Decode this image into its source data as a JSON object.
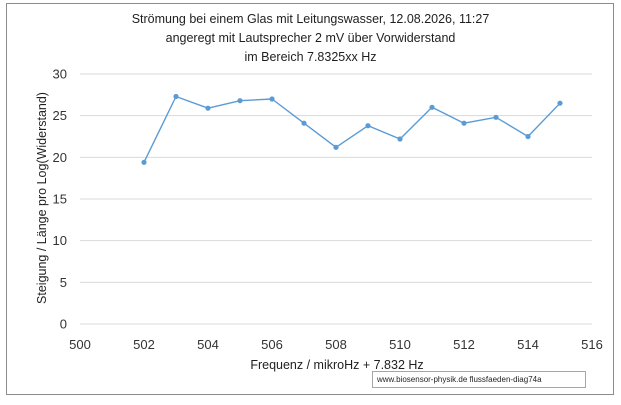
{
  "chart_data": {
    "type": "line",
    "title_lines": [
      "Strömung bei einem Glas mit  Leitungswasser, 12.08.2026, 11:27",
      "angeregt mit Lautsprecher 2 mV über Vorwiderstand",
      "im Bereich 7.8325xx Hz"
    ],
    "xlabel": "Frequenz / mikroHz  + 7.832 Hz",
    "ylabel": "Steigung /  Länge pro Log(Widerstand)",
    "xlim": [
      500,
      516
    ],
    "ylim": [
      0,
      30
    ],
    "x_ticks": [
      500,
      502,
      504,
      506,
      508,
      510,
      512,
      514,
      516
    ],
    "y_ticks": [
      0,
      5,
      10,
      15,
      20,
      25,
      30
    ],
    "grid": "horizontal",
    "legend": "none",
    "series": [
      {
        "color": "#5b9bd5",
        "x": [
          502,
          503,
          504,
          505,
          506,
          507,
          508,
          509,
          510,
          511,
          512,
          513,
          514,
          515
        ],
        "y": [
          19.4,
          27.3,
          25.9,
          26.8,
          27.0,
          24.1,
          21.2,
          23.8,
          22.2,
          26.0,
          24.1,
          24.8,
          22.5,
          26.5
        ]
      }
    ],
    "credit": "www.biosensor-physik.de  flussfaeden-diag74a"
  }
}
